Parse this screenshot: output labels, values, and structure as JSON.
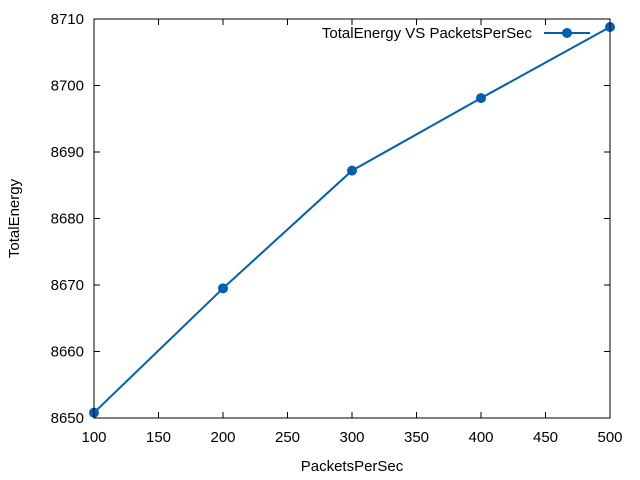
{
  "chart_data": {
    "type": "line",
    "title": "",
    "xlabel": "PacketsPerSec",
    "ylabel": "TotalEnergy",
    "xlim": [
      100,
      500
    ],
    "ylim": [
      8650,
      8710
    ],
    "x_ticks": [
      "100",
      "150",
      "200",
      "250",
      "300",
      "350",
      "400",
      "450",
      "500"
    ],
    "y_ticks": [
      "8650",
      "8660",
      "8670",
      "8680",
      "8690",
      "8700",
      "8710"
    ],
    "grid": false,
    "legend_position": "top-right",
    "series": [
      {
        "name": "TotalEnergy VS PacketsPerSec",
        "color": "#0060ad",
        "marker": "circle",
        "x": [
          100,
          200,
          300,
          400,
          500
        ],
        "y": [
          8650.8,
          8669.5,
          8687.2,
          8698.1,
          8708.8
        ]
      }
    ]
  }
}
